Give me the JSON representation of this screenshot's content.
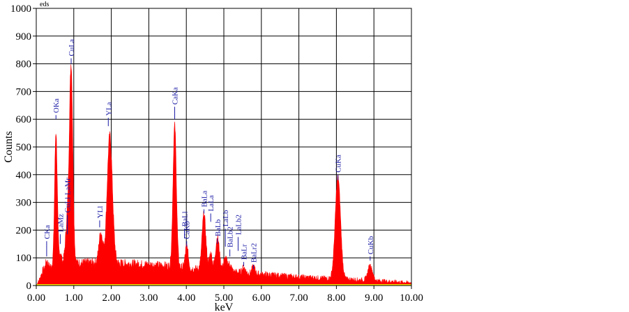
{
  "chart_data": {
    "type": "line",
    "title": "",
    "xlabel": "keV",
    "ylabel": "Counts",
    "unit_label": "eds",
    "xlim": [
      0,
      10
    ],
    "ylim": [
      0,
      1000
    ],
    "x_ticks": [
      0,
      1,
      2,
      3,
      4,
      5,
      6,
      7,
      8,
      9,
      10
    ],
    "x_tick_labels": [
      "0.00",
      "1.00",
      "2.00",
      "3.00",
      "4.00",
      "5.00",
      "6.00",
      "7.00",
      "8.00",
      "9.00",
      "10.00"
    ],
    "y_ticks": [
      0,
      100,
      200,
      300,
      400,
      500,
      600,
      700,
      800,
      900,
      1000
    ],
    "grid": true,
    "series_color": "#ff0000",
    "label_color": "#1a1aa6",
    "peaks": [
      {
        "label": "CKa",
        "x": 0.277,
        "marker_top": 160,
        "marker_bottom": 105
      },
      {
        "label": "OKa",
        "x": 0.525,
        "marker_top": 615,
        "marker_bottom": 600
      },
      {
        "label": "LaMz",
        "x": 0.64,
        "marker_top": 185,
        "marker_bottom": 150
      },
      {
        "label": "CuLl LaMr",
        "x": 0.83,
        "marker_top": 255,
        "marker_bottom": 185
      },
      {
        "label": "CuLa",
        "x": 0.93,
        "marker_top": 820,
        "marker_bottom": 800
      },
      {
        "label": "YLl",
        "x": 1.69,
        "marker_top": 235,
        "marker_bottom": 210
      },
      {
        "label": "YLa",
        "x": 1.92,
        "marker_top": 605,
        "marker_bottom": 575
      },
      {
        "label": "CaKa",
        "x": 3.69,
        "marker_top": 645,
        "marker_bottom": 600
      },
      {
        "label": "CaKb",
        "x": 4.01,
        "marker_top": 160,
        "marker_bottom": 140
      },
      {
        "label": "BaLl",
        "x": 3.95,
        "marker_top": 205,
        "marker_bottom": 170
      },
      {
        "label": "BaLa",
        "x": 4.47,
        "marker_top": 275,
        "marker_bottom": 260
      },
      {
        "label": "LaLa",
        "x": 4.65,
        "marker_top": 260,
        "marker_bottom": 230
      },
      {
        "label": "BaLb",
        "x": 4.83,
        "marker_top": 170,
        "marker_bottom": 150
      },
      {
        "label": "LaLb",
        "x": 5.04,
        "marker_top": 205,
        "marker_bottom": 140
      },
      {
        "label": "BaLb2",
        "x": 5.16,
        "marker_top": 130,
        "marker_bottom": 105
      },
      {
        "label": "LaLb2",
        "x": 5.38,
        "marker_top": 175,
        "marker_bottom": 125
      },
      {
        "label": "BaLr",
        "x": 5.53,
        "marker_top": 85,
        "marker_bottom": 70
      },
      {
        "label": "BaLr2",
        "x": 5.79,
        "marker_top": 75,
        "marker_bottom": 60
      },
      {
        "label": "CuKa",
        "x": 8.04,
        "marker_top": 400,
        "marker_bottom": 380
      },
      {
        "label": "CuKb",
        "x": 8.9,
        "marker_top": 105,
        "marker_bottom": 90
      }
    ],
    "spectrum": {
      "background": [
        [
          0,
          0
        ],
        [
          0.08,
          20
        ],
        [
          0.18,
          55
        ],
        [
          0.3,
          65
        ],
        [
          0.5,
          75
        ],
        [
          1.0,
          80
        ],
        [
          1.5,
          82
        ],
        [
          2.5,
          78
        ],
        [
          3.0,
          75
        ],
        [
          3.5,
          70
        ],
        [
          4.0,
          62
        ],
        [
          5.0,
          52
        ],
        [
          6.0,
          40
        ],
        [
          7.0,
          30
        ],
        [
          8.0,
          24
        ],
        [
          9.0,
          18
        ],
        [
          10.0,
          10
        ]
      ],
      "gaussians": [
        {
          "center": 0.277,
          "height": 25,
          "width": 0.03
        },
        {
          "center": 0.525,
          "height": 480,
          "width": 0.035
        },
        {
          "center": 0.64,
          "height": 40,
          "width": 0.03
        },
        {
          "center": 0.83,
          "height": 150,
          "width": 0.05
        },
        {
          "center": 0.93,
          "height": 700,
          "width": 0.045
        },
        {
          "center": 1.72,
          "height": 110,
          "width": 0.05
        },
        {
          "center": 1.96,
          "height": 460,
          "width": 0.07
        },
        {
          "center": 3.69,
          "height": 510,
          "width": 0.045
        },
        {
          "center": 4.01,
          "height": 80,
          "width": 0.04
        },
        {
          "center": 4.47,
          "height": 200,
          "width": 0.05
        },
        {
          "center": 4.65,
          "height": 60,
          "width": 0.04
        },
        {
          "center": 4.83,
          "height": 120,
          "width": 0.05
        },
        {
          "center": 5.04,
          "height": 45,
          "width": 0.05
        },
        {
          "center": 5.16,
          "height": 25,
          "width": 0.04
        },
        {
          "center": 5.53,
          "height": 20,
          "width": 0.04
        },
        {
          "center": 5.79,
          "height": 25,
          "width": 0.04
        },
        {
          "center": 8.04,
          "height": 370,
          "width": 0.07
        },
        {
          "center": 8.9,
          "height": 55,
          "width": 0.06
        }
      ],
      "noise_amplitude": 18
    }
  }
}
